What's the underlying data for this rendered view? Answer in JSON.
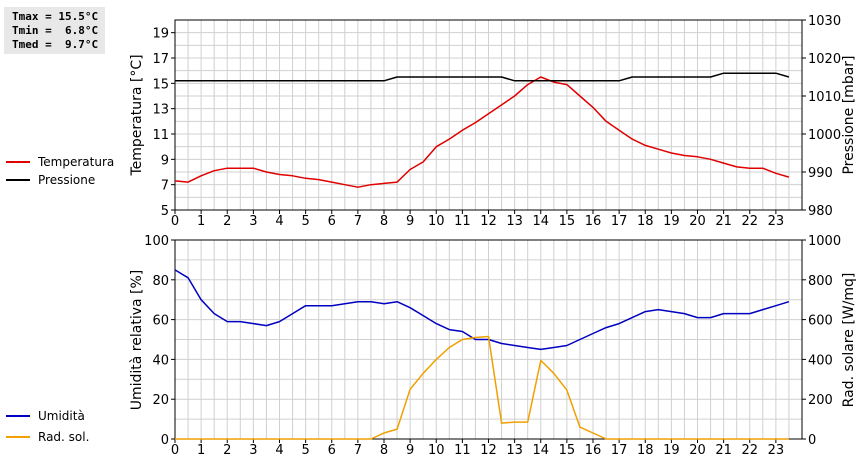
{
  "stats": {
    "tmax": "Tmax = 15.5°C",
    "tmin": "Tmin =  6.8°C",
    "tmed": "Tmed =  9.7°C"
  },
  "chart_data": [
    {
      "type": "line",
      "x_ticks": [
        "0",
        "1",
        "2",
        "3",
        "4",
        "5",
        "6",
        "7",
        "8",
        "9",
        "10",
        "11",
        "12",
        "13",
        "14",
        "15",
        "16",
        "17",
        "18",
        "19",
        "20",
        "21",
        "22",
        "23"
      ],
      "xlim": [
        0,
        24
      ],
      "ylabel": "Temperatura [°C]",
      "ylim": [
        5,
        20
      ],
      "y_ticks": [
        "5",
        "7",
        "9",
        "11",
        "13",
        "15",
        "17",
        "19"
      ],
      "y2label": "Pressione [mbar]",
      "y2lim": [
        980,
        1030
      ],
      "y2_ticks": [
        "980",
        "990",
        "1000",
        "1010",
        "1020",
        "1030"
      ],
      "grid": true,
      "legend_position": "left",
      "series": [
        {
          "name": "Temperatura",
          "color": "#e00000",
          "axis": "left",
          "x": [
            0,
            0.5,
            1,
            1.5,
            2,
            2.5,
            3,
            3.5,
            4,
            4.5,
            5,
            5.5,
            6,
            6.5,
            7,
            7.5,
            8,
            8.5,
            9,
            9.5,
            10,
            10.5,
            11,
            11.5,
            12,
            12.5,
            13,
            13.5,
            14,
            14.5,
            15,
            15.5,
            16,
            16.5,
            17,
            17.5,
            18,
            18.5,
            19,
            19.5,
            20,
            20.5,
            21,
            21.5,
            22,
            22.5,
            23,
            23.5
          ],
          "values": [
            7.3,
            7.2,
            7.7,
            8.1,
            8.3,
            8.3,
            8.3,
            8.0,
            7.8,
            7.7,
            7.5,
            7.4,
            7.2,
            7.0,
            6.8,
            7.0,
            7.1,
            7.2,
            8.2,
            8.8,
            10.0,
            10.6,
            11.3,
            11.9,
            12.6,
            13.3,
            14.0,
            14.9,
            15.5,
            15.1,
            14.9,
            14.0,
            13.1,
            12.0,
            11.3,
            10.6,
            10.1,
            9.8,
            9.5,
            9.3,
            9.2,
            9.0,
            8.7,
            8.4,
            8.3,
            8.3,
            7.9,
            7.6
          ]
        },
        {
          "name": "Pressione",
          "color": "#000000",
          "axis": "right",
          "x": [
            0,
            8,
            8.5,
            12.5,
            13,
            17,
            17.5,
            20.5,
            21,
            23,
            23.5
          ],
          "values": [
            1014,
            1014,
            1015,
            1015,
            1014,
            1014,
            1015,
            1015,
            1016,
            1016,
            1015
          ]
        }
      ]
    },
    {
      "type": "line",
      "x_ticks": [
        "0",
        "1",
        "2",
        "3",
        "4",
        "5",
        "6",
        "7",
        "8",
        "9",
        "10",
        "11",
        "12",
        "13",
        "14",
        "15",
        "16",
        "17",
        "18",
        "19",
        "20",
        "21",
        "22",
        "23"
      ],
      "xlim": [
        0,
        24
      ],
      "ylabel": "Umidità relativa [%]",
      "ylim": [
        0,
        100
      ],
      "y_ticks": [
        "0",
        "20",
        "40",
        "60",
        "80",
        "100"
      ],
      "y2label": "Rad. solare [W/mq]",
      "y2lim": [
        0,
        1000
      ],
      "y2_ticks": [
        "0",
        "200",
        "400",
        "600",
        "800",
        "1000"
      ],
      "grid": true,
      "legend_position": "left",
      "series": [
        {
          "name": "Umidità",
          "color": "#0000c0",
          "axis": "left",
          "x": [
            0,
            0.5,
            1,
            1.5,
            2,
            2.5,
            3,
            3.5,
            4,
            4.5,
            5,
            5.5,
            6,
            6.5,
            7,
            7.5,
            8,
            8.5,
            9,
            9.5,
            10,
            10.5,
            11,
            11.5,
            12,
            12.5,
            13,
            13.5,
            14,
            14.5,
            15,
            15.5,
            16,
            16.5,
            17,
            17.5,
            18,
            18.5,
            19,
            19.5,
            20,
            20.5,
            21,
            21.5,
            22,
            22.5,
            23,
            23.5
          ],
          "values": [
            85,
            81,
            70,
            63,
            59,
            59,
            58,
            57,
            59,
            63,
            67,
            67,
            67,
            68,
            69,
            69,
            68,
            69,
            66,
            62,
            58,
            55,
            54,
            50,
            50,
            48,
            47,
            46,
            45,
            46,
            47,
            50,
            53,
            56,
            58,
            61,
            64,
            65,
            64,
            63,
            61,
            61,
            63,
            63,
            63,
            65,
            67,
            69
          ]
        },
        {
          "name": "Rad. sol.",
          "color": "#f0a000",
          "axis": "right",
          "x": [
            0,
            7.5,
            8,
            8.5,
            9,
            9.5,
            10,
            10.5,
            11,
            11.5,
            12,
            12.5,
            13,
            13.5,
            14,
            14.5,
            15,
            15.5,
            16,
            16.5,
            23.5
          ],
          "values": [
            0,
            0,
            30,
            50,
            250,
            330,
            400,
            460,
            500,
            510,
            515,
            80,
            85,
            85,
            395,
            330,
            245,
            60,
            30,
            0,
            0
          ]
        }
      ]
    }
  ]
}
